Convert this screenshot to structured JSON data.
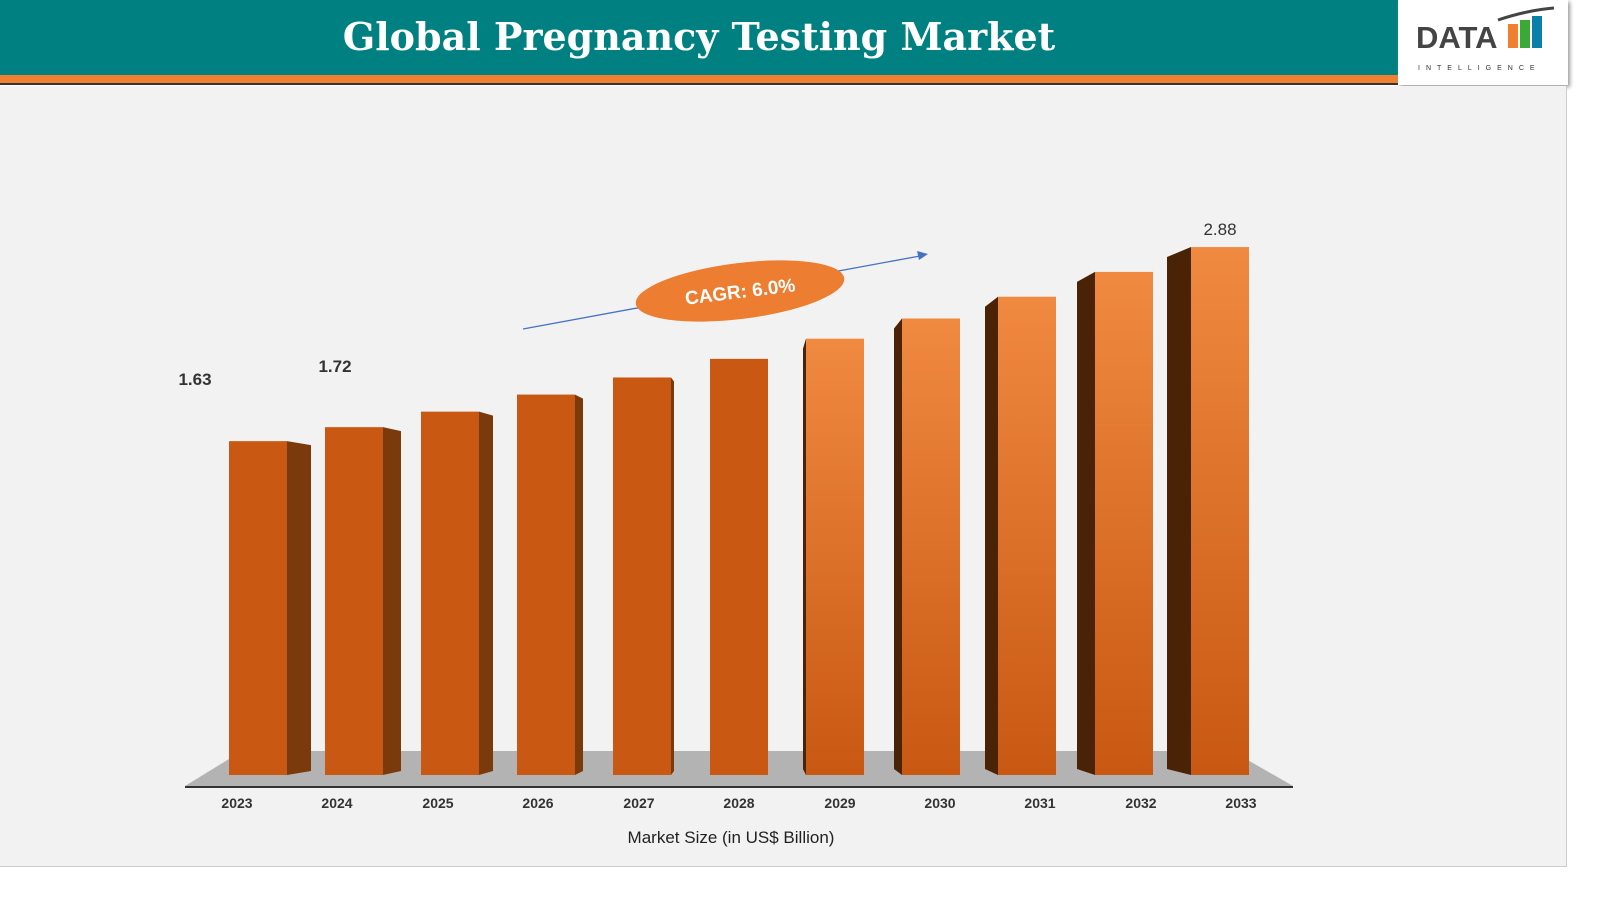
{
  "header": {
    "title": "Global Pregnancy Testing Market"
  },
  "logo": {
    "text": "DATA",
    "subtext": "INTELLIGENCE"
  },
  "colors": {
    "header": "#008080",
    "stripe": "#f08030",
    "bar": "#d2621a",
    "bar_side": "#6b3410",
    "floor": "#b3b3b3"
  },
  "chart_data": {
    "type": "bar",
    "style": "3d",
    "categories": [
      "2023",
      "2024",
      "2025",
      "2026",
      "2027",
      "2028",
      "2029",
      "2030",
      "2031",
      "2032",
      "2033"
    ],
    "values": [
      1.63,
      1.72,
      1.82,
      1.93,
      2.04,
      2.16,
      2.29,
      2.42,
      2.56,
      2.72,
      2.88
    ],
    "data_labels": {
      "2023": "1.63",
      "2024": "1.72",
      "2033": "2.88"
    },
    "xlabel": "Market Size (in US$ Billion)",
    "annotation": "CAGR: 6.0%",
    "grid": false,
    "legend": "none"
  }
}
